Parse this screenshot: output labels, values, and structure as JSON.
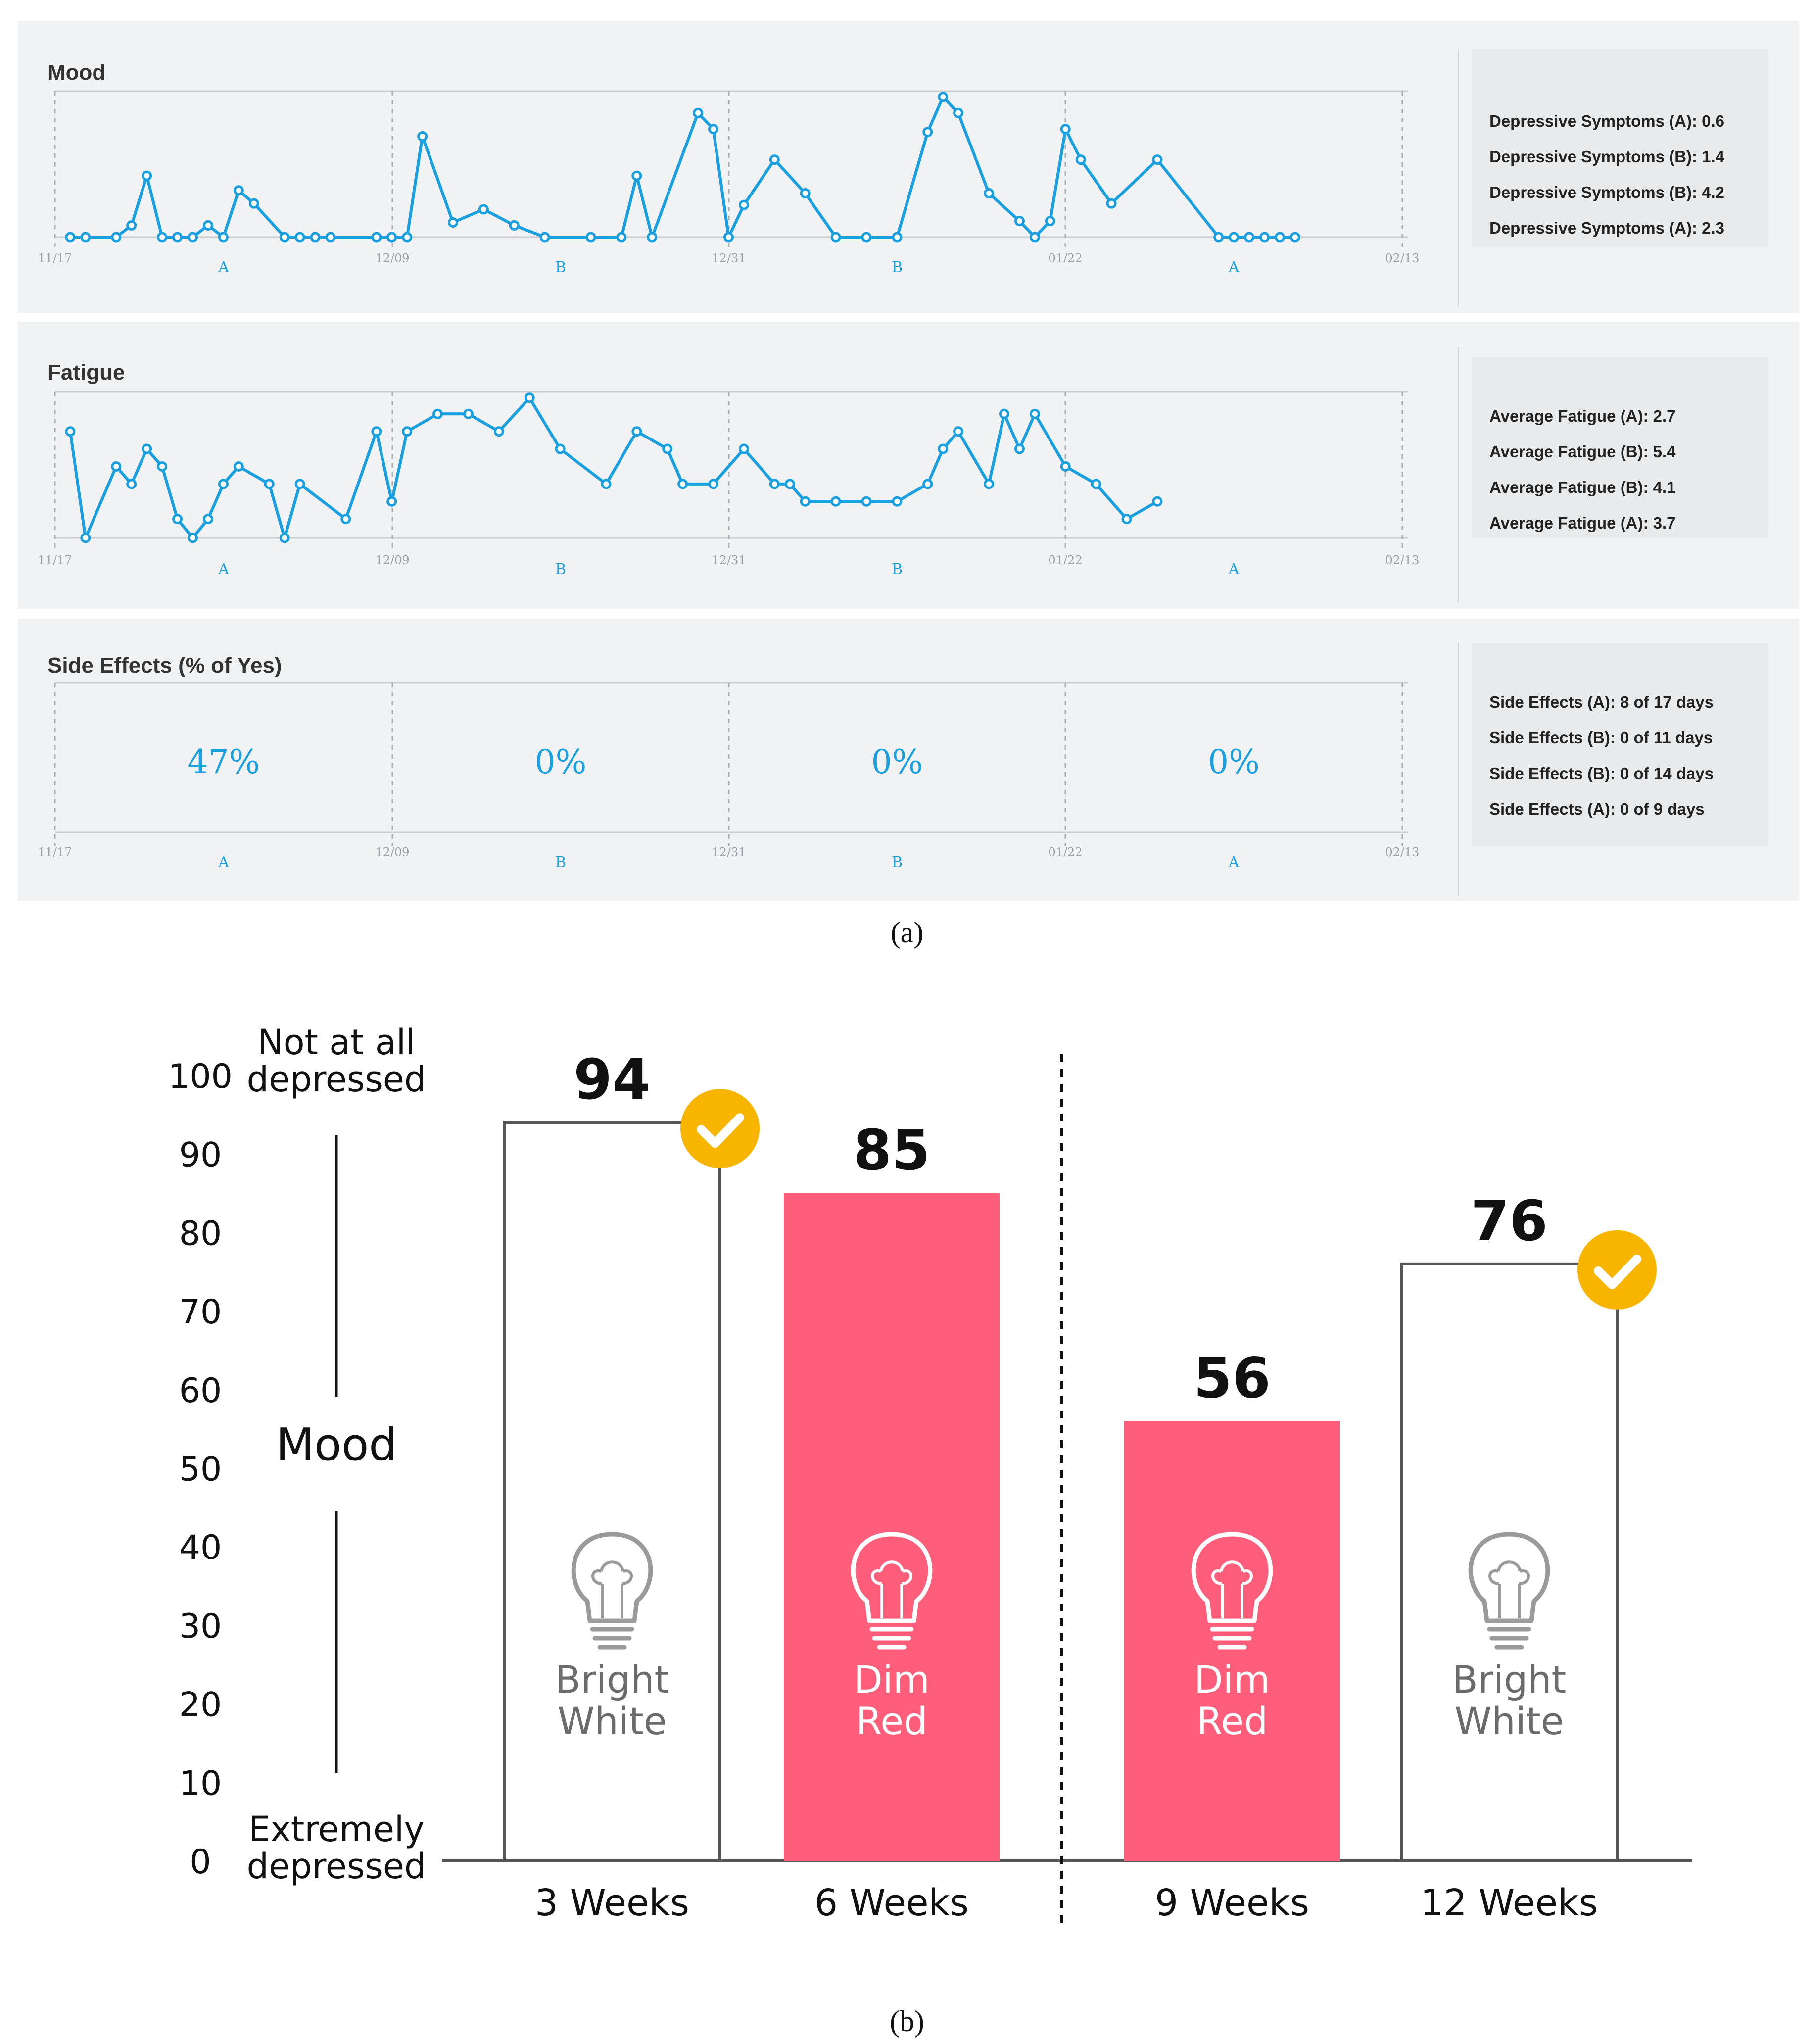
{
  "panel_a": {
    "caption": "(a)",
    "date_ticks": [
      "11/17",
      "12/09",
      "12/31",
      "01/22",
      "02/13"
    ],
    "phase_labels": [
      "A",
      "B",
      "B",
      "A"
    ],
    "colors": {
      "line": "#1a9fe0",
      "panel_bg": "#f1f2f3",
      "stat_bg": "#e9eaeb"
    },
    "mood": {
      "title": "Mood",
      "stats": [
        "Depressive Symptoms (A): 0.6",
        "Depressive Symptoms (B): 1.4",
        "Depressive Symptoms (B): 4.2",
        "Depressive Symptoms (A): 2.3"
      ]
    },
    "fatigue": {
      "title": "Fatigue",
      "stats": [
        "Average Fatigue (A): 2.7",
        "Average Fatigue (B): 5.4",
        "Average Fatigue (B): 4.1",
        "Average Fatigue (A): 3.7"
      ]
    },
    "side_effects": {
      "title": "Side Effects (% of Yes)",
      "percents": [
        "47%",
        "0%",
        "0%",
        "0%"
      ],
      "stats": [
        "Side Effects (A): 8 of 17 days",
        "Side Effects (B): 0 of 11 days",
        "Side Effects (B): 0 of 14 days",
        "Side Effects (A): 0 of 9 days"
      ]
    }
  },
  "chart_data": [
    {
      "type": "line",
      "title": "Mood",
      "x_unit": "day index from 11/17",
      "xlim": [
        0,
        88
      ],
      "ylim": [
        0,
        10
      ],
      "x_ticks": [
        "11/17",
        "12/09",
        "12/31",
        "01/22",
        "02/13"
      ],
      "series": [
        {
          "x": [
            1,
            2,
            4,
            5,
            6,
            7,
            8,
            9,
            10,
            11,
            12,
            13,
            15,
            16,
            17,
            18,
            21,
            22,
            23,
            24,
            26,
            28,
            30,
            32,
            35,
            37,
            38,
            39,
            42,
            43,
            44,
            45,
            47,
            49,
            51,
            53,
            55,
            57,
            58,
            59,
            61,
            63,
            64,
            65,
            66,
            67,
            69,
            72,
            76,
            77,
            78,
            79,
            80,
            81
          ],
          "values": [
            0,
            0,
            0,
            0.8,
            4.2,
            0,
            0,
            0,
            0.8,
            0,
            3.2,
            2.3,
            0,
            0,
            0,
            0,
            0,
            0,
            0,
            6.9,
            1,
            1.9,
            0.8,
            0,
            0,
            0,
            4.2,
            0,
            8.5,
            7.4,
            0,
            2.2,
            5.3,
            3,
            0,
            0,
            0,
            7.2,
            9.6,
            8.5,
            3,
            1.1,
            0,
            1.1,
            7.4,
            5.3,
            2.3,
            5.3,
            0,
            0,
            0,
            0,
            0,
            0
          ]
        }
      ]
    },
    {
      "type": "line",
      "title": "Fatigue",
      "x_unit": "day index from 11/17",
      "xlim": [
        0,
        88
      ],
      "ylim": [
        0,
        10
      ],
      "x_ticks": [
        "11/17",
        "12/09",
        "12/31",
        "01/22",
        "02/13"
      ],
      "series": [
        {
          "x": [
            1,
            2,
            4,
            5,
            6,
            7,
            8,
            9,
            10,
            11,
            12,
            14,
            15,
            16,
            19,
            21,
            22,
            23,
            25,
            27,
            29,
            31,
            33,
            36,
            38,
            40,
            41,
            43,
            45,
            47,
            48,
            49,
            51,
            53,
            55,
            57,
            58,
            59,
            61,
            62,
            63,
            64,
            66,
            68,
            70,
            72
          ],
          "values": [
            7.3,
            0,
            4.9,
            3.7,
            6.1,
            4.9,
            1.3,
            0,
            1.3,
            3.7,
            4.9,
            3.7,
            0,
            3.7,
            1.3,
            7.3,
            2.5,
            7.3,
            8.5,
            8.5,
            7.3,
            9.6,
            6.1,
            3.7,
            7.3,
            6.1,
            3.7,
            3.7,
            6.1,
            3.7,
            3.7,
            2.5,
            2.5,
            2.5,
            2.5,
            3.7,
            6.1,
            7.3,
            3.7,
            8.5,
            6.1,
            8.5,
            4.9,
            3.7,
            1.3,
            2.5
          ]
        }
      ]
    },
    {
      "type": "table",
      "title": "Side Effects (% of Yes)",
      "phases": [
        "A",
        "B",
        "B",
        "A"
      ],
      "values": [
        47,
        0,
        0,
        0
      ],
      "unit": "%"
    },
    {
      "type": "bar",
      "title": "",
      "caption": "(b)",
      "ylabel": "Mood",
      "ylabel_top": [
        "Not at all",
        "depressed"
      ],
      "ylabel_bottom": [
        "Extremely",
        "depressed"
      ],
      "ylim": [
        0,
        100
      ],
      "y_ticks": [
        0,
        10,
        20,
        30,
        40,
        50,
        60,
        70,
        80,
        90,
        100
      ],
      "categories": [
        "3 Weeks",
        "6 Weeks",
        "9 Weeks",
        "12 Weeks"
      ],
      "values": [
        94,
        85,
        56,
        76
      ],
      "bar_labels": [
        [
          "Bright",
          "White"
        ],
        [
          "Dim",
          "Red"
        ],
        [
          "Dim",
          "Red"
        ],
        [
          "Bright",
          "White"
        ]
      ],
      "bar_fills": [
        "#ffffff",
        "#ff5e7a",
        "#ff5e7a",
        "#ffffff"
      ],
      "checkmarks": [
        true,
        false,
        false,
        true
      ],
      "colors": {
        "red": "#ff5e7a",
        "check": "#f7b500",
        "bulb_grey": "#9a9a9a",
        "bulb_light": "#ffffff"
      }
    }
  ]
}
